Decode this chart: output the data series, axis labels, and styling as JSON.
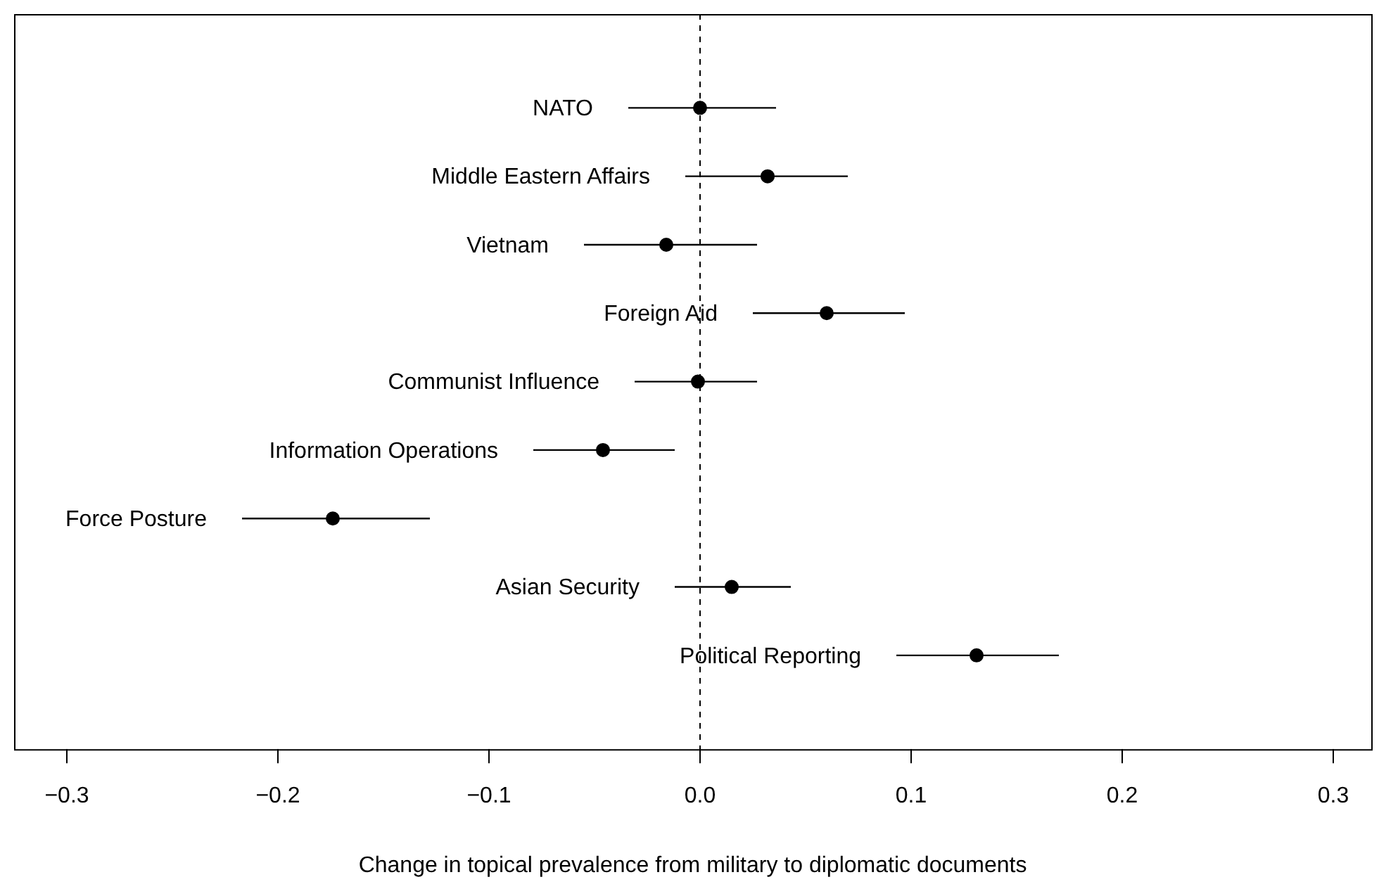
{
  "chart_data": {
    "type": "scatter",
    "orientation": "horizontal",
    "xlabel": "Change in topical prevalence from military to diplomatic documents",
    "categories": [
      "NATO",
      "Middle Eastern Affairs",
      "Vietnam",
      "Foreign Aid",
      "Communist Influence",
      "Information Operations",
      "Force Posture",
      "Asian Security",
      "Political Reporting"
    ],
    "values": [
      0.0,
      0.032,
      -0.016,
      0.06,
      -0.001,
      -0.046,
      -0.174,
      0.015,
      0.131
    ],
    "errors": [
      [
        -0.034,
        0.036
      ],
      [
        -0.007,
        0.07
      ],
      [
        -0.055,
        0.027
      ],
      [
        0.025,
        0.097
      ],
      [
        -0.031,
        0.027
      ],
      [
        -0.079,
        -0.012
      ],
      [
        -0.217,
        -0.128
      ],
      [
        -0.012,
        0.043
      ],
      [
        0.093,
        0.17
      ]
    ],
    "color": "#000000",
    "marker": "circle",
    "xlim": [
      -0.325,
      0.318
    ],
    "xticks": [
      {
        "value": -0.3,
        "label": "−0.3"
      },
      {
        "value": -0.2,
        "label": "−0.2"
      },
      {
        "value": -0.1,
        "label": "−0.1"
      },
      {
        "value": 0,
        "label": "0.0"
      },
      0.1,
      0.2,
      0.3
    ],
    "tick_labels": "x",
    "ref_lines": [
      {
        "axis": "x",
        "value": 0,
        "line_style": "dashed",
        "color": "#000000"
      }
    ]
  }
}
